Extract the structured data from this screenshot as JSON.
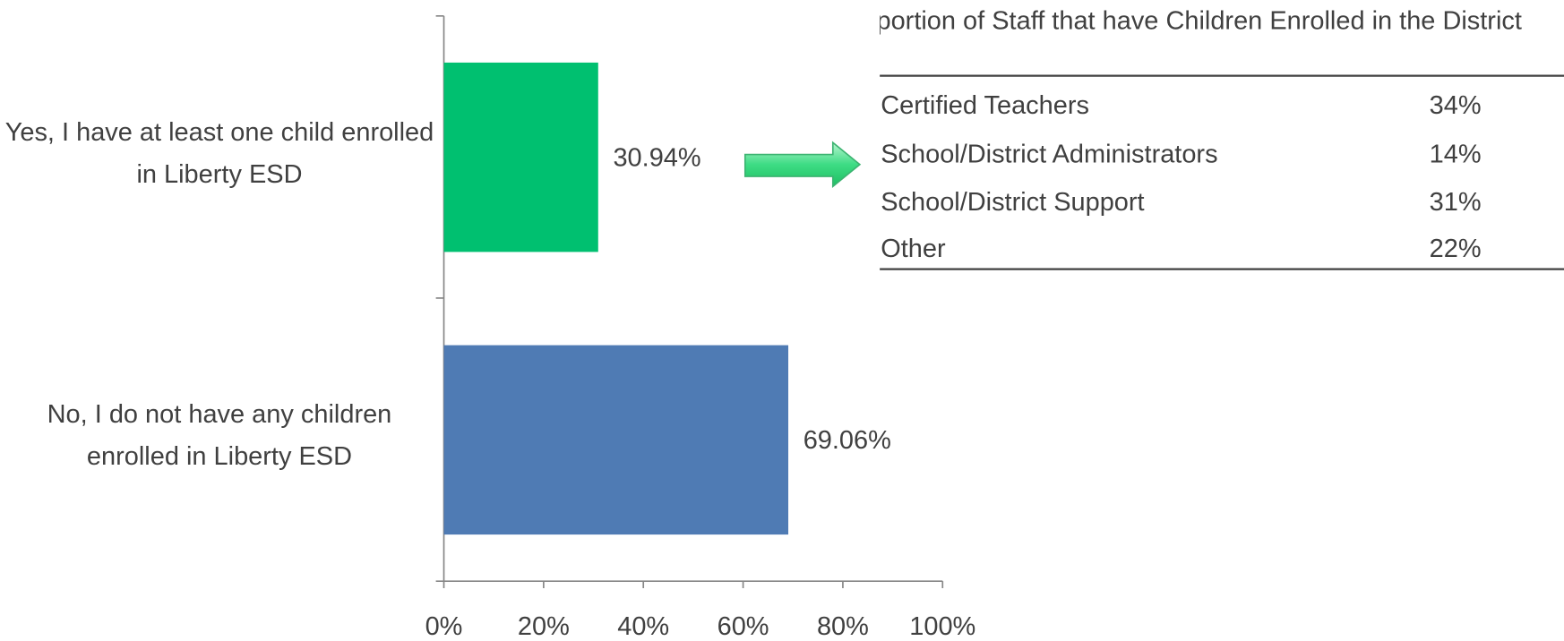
{
  "chart_data": {
    "type": "hbar",
    "categories": [
      "Yes, I have at least one child enrolled in Liberty ESD",
      "No, I do not have any children enrolled in Liberty ESD"
    ],
    "values": [
      30.94,
      69.06
    ],
    "value_labels": [
      "30.94%",
      "69.06%"
    ],
    "colors": [
      "#00c070",
      "#4f7bb4"
    ],
    "xlim": [
      0,
      100
    ],
    "xticks": [
      {
        "value": 0,
        "label": "0%"
      },
      {
        "value": 20,
        "label": "20%"
      },
      {
        "value": 40,
        "label": "40%"
      },
      {
        "value": 60,
        "label": "60%"
      },
      {
        "value": 80,
        "label": "80%"
      },
      {
        "value": 100,
        "label": "100%"
      }
    ]
  },
  "table": {
    "title": "Proportion of Staff that have Children Enrolled in the District",
    "rows": [
      [
        "Certified Teachers",
        "34%"
      ],
      [
        "School/District Administrators",
        "14%"
      ],
      [
        "School/District Support",
        "31%"
      ],
      [
        "Other",
        "22%"
      ]
    ]
  }
}
